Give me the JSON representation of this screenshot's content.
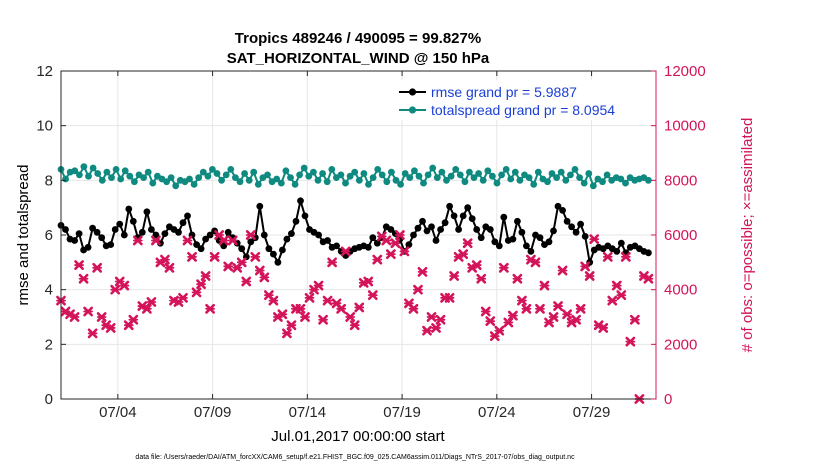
{
  "chart_data": {
    "type": "line",
    "title": "Tropics 489246 / 490095 = 99.827%",
    "subtitle": "SAT_HORIZONTAL_WIND @ 150 hPa",
    "xlabel": "Jul.01,2017 00:00:00 start",
    "ylabel_left": "rmse and totalspread",
    "ylabel_right": "# of obs: o=possible; ×=assimilated",
    "footnote": "data file: /Users/raeder/DAI/ATM_forcXX/CAM6_setup/f.e21.FHIST_BGC.f09_025.CAM6assim.011/Diags_NTrS_2017-07/obs_diag_output.nc",
    "xlim": [
      1,
      32.4
    ],
    "ylim_left": [
      0,
      12
    ],
    "ylim_right": [
      0,
      12000
    ],
    "x_ticks": [
      4,
      9,
      14,
      19,
      24,
      29
    ],
    "x_tick_labels": [
      "07/04",
      "07/09",
      "07/14",
      "07/19",
      "07/24",
      "07/29"
    ],
    "y_left_ticks": [
      "0",
      "2",
      "4",
      "6",
      "8",
      "10",
      "12"
    ],
    "y_right_ticks": [
      "0",
      "2000",
      "4000",
      "6000",
      "8000",
      "10000",
      "12000"
    ],
    "grid": true,
    "legend_position": "top-right",
    "colors": {
      "rmse": "#000000",
      "spread": "#0e8a80",
      "obs": "#d4145a",
      "legend_text": "#1a3fd6"
    },
    "series": [
      {
        "name": "rmse grand pr = 5.9887",
        "axis": "left",
        "values": [
          6.35,
          6.2,
          5.85,
          5.8,
          6.05,
          5.45,
          5.55,
          6.25,
          6.1,
          5.9,
          5.6,
          5.65,
          6.2,
          6.4,
          6.0,
          6.95,
          6.5,
          5.9,
          6.1,
          6.85,
          6.2,
          6.0,
          5.7,
          6.05,
          6.3,
          6.2,
          6.1,
          6.45,
          6.7,
          6.0,
          5.65,
          5.5,
          5.85,
          6.0,
          6.15,
          5.8,
          5.6,
          6.1,
          5.9,
          5.7,
          5.5,
          5.2,
          5.75,
          5.9,
          7.05,
          6.0,
          5.5,
          5.3,
          5.0,
          5.45,
          5.85,
          6.05,
          6.5,
          7.25,
          6.7,
          6.2,
          6.1,
          6.0,
          5.75,
          5.8,
          5.55,
          5.6,
          5.4,
          5.25,
          5.4,
          5.5,
          5.55,
          5.6,
          5.55,
          5.9,
          5.7,
          5.9,
          6.3,
          6.2,
          6.05,
          5.85,
          5.4,
          5.65,
          6.0,
          6.25,
          6.5,
          6.15,
          6.3,
          5.8,
          6.2,
          6.45,
          7.05,
          6.7,
          6.2,
          6.7,
          7.0,
          6.6,
          6.2,
          5.9,
          6.3,
          6.2,
          5.75,
          5.6,
          6.65,
          5.8,
          5.85,
          6.5,
          6.1,
          5.6,
          5.4,
          6.0,
          5.9,
          5.65,
          5.75,
          6.15,
          7.05,
          6.9,
          6.5,
          6.3,
          6.1,
          6.4,
          5.95,
          5.0,
          5.45,
          5.55,
          5.5,
          5.6,
          5.5,
          5.4,
          5.7,
          5.35,
          5.55,
          5.6,
          5.5,
          5.4,
          5.35
        ]
      },
      {
        "name": "totalspread grand pr = 8.0954",
        "axis": "left",
        "values": [
          8.4,
          8.05,
          8.3,
          8.35,
          8.2,
          8.5,
          8.15,
          8.45,
          8.25,
          8.0,
          8.3,
          8.1,
          8.4,
          8.05,
          8.35,
          8.15,
          7.95,
          8.2,
          8.1,
          8.3,
          7.9,
          8.15,
          8.05,
          7.95,
          8.1,
          7.8,
          8.0,
          7.95,
          8.05,
          7.85,
          8.1,
          8.3,
          8.15,
          8.4,
          8.25,
          8.0,
          8.2,
          8.4,
          8.1,
          7.95,
          8.25,
          8.0,
          8.3,
          7.85,
          8.1,
          8.2,
          7.95,
          8.05,
          7.9,
          8.35,
          8.1,
          7.85,
          8.2,
          8.45,
          8.15,
          8.3,
          8.0,
          8.25,
          7.95,
          8.4,
          8.1,
          8.2,
          7.9,
          8.15,
          8.3,
          8.0,
          8.25,
          7.85,
          8.1,
          8.4,
          8.2,
          7.95,
          8.3,
          8.0,
          7.85,
          8.25,
          8.1,
          8.35,
          8.15,
          7.9,
          8.2,
          8.45,
          8.1,
          8.3,
          8.0,
          8.15,
          8.4,
          8.2,
          7.95,
          8.3,
          8.1,
          8.25,
          8.0,
          8.35,
          8.15,
          7.9,
          8.2,
          8.4,
          8.05,
          8.3,
          8.0,
          8.2,
          8.1,
          7.85,
          8.3,
          8.05,
          7.95,
          8.25,
          8.1,
          8.3,
          8.0,
          8.2,
          8.4,
          8.1,
          7.9,
          8.25,
          7.8,
          8.05,
          7.95,
          8.2,
          8.0,
          8.1,
          8.05,
          7.9,
          8.1,
          8.0,
          8.05,
          8.1,
          8.0
        ]
      },
      {
        "name": "obs assimilated",
        "axis": "right",
        "marker_only": true,
        "values": [
          3600,
          3200,
          3100,
          3000,
          4900,
          4400,
          3200,
          2400,
          4800,
          3000,
          2700,
          2600,
          4000,
          4300,
          4150,
          2700,
          2900,
          5800,
          3400,
          3300,
          3550,
          5800,
          5000,
          5100,
          4800,
          3600,
          3550,
          3700,
          5800,
          5200,
          3900,
          4200,
          4500,
          3300,
          5200,
          6000,
          5800,
          4850,
          5800,
          4800,
          5000,
          4300,
          6000,
          5200,
          4700,
          4450,
          3800,
          3600,
          3000,
          3100,
          2400,
          2700,
          3300,
          3300,
          3000,
          3700,
          4000,
          4150,
          2900,
          3600,
          5000,
          3500,
          3300,
          5400,
          3000,
          2700,
          3350,
          4250,
          4300,
          3800,
          5100,
          5950,
          5800,
          5300,
          5700,
          6000,
          5400,
          3500,
          3300,
          4000,
          4650,
          2500,
          3000,
          2600,
          2900,
          3700,
          3700,
          4500,
          5200,
          5300,
          5700,
          4800,
          4900,
          4400,
          3200,
          2850,
          2300,
          2500,
          4800,
          2800,
          3050,
          4400,
          3600,
          3300,
          5100,
          5000,
          3300,
          4150,
          2800,
          3000,
          3400,
          4700,
          3100,
          2800,
          2900,
          3300,
          4850,
          4500,
          5850,
          2700,
          2600,
          5200,
          3600,
          4150,
          3800,
          5200,
          2100,
          2900,
          0,
          4500,
          4400
        ]
      }
    ]
  }
}
